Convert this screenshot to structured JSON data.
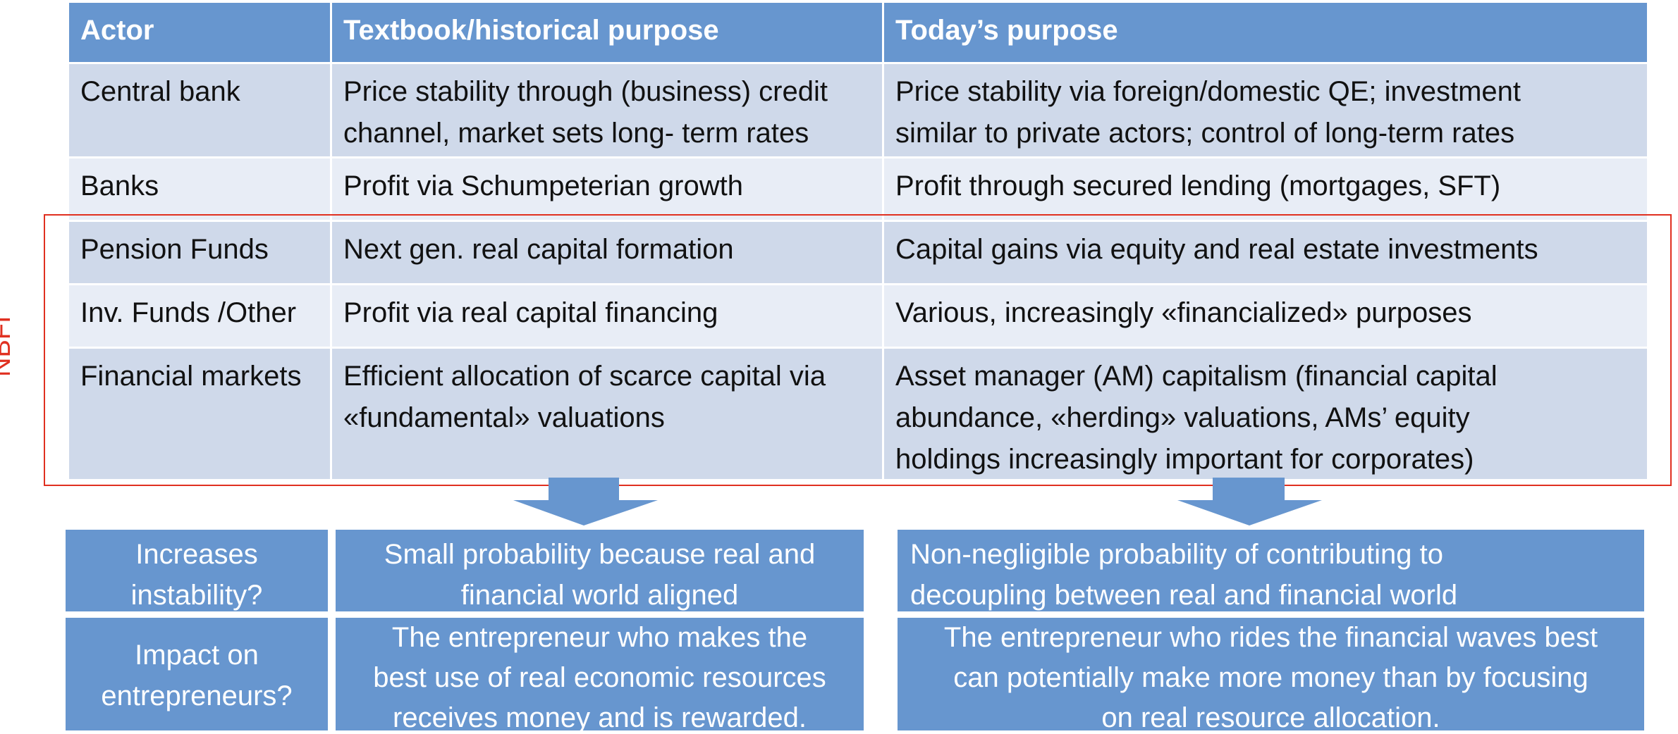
{
  "table": {
    "headers": [
      "Actor",
      "Textbook/historical purpose",
      "Today’s purpose"
    ],
    "rows": [
      {
        "actor": "Central bank",
        "historical": [
          "Price stability through (business) credit",
          "channel, market sets long- term rates"
        ],
        "today": [
          "Price stability via foreign/domestic QE; investment",
          "similar to private actors; control of long-term rates"
        ]
      },
      {
        "actor": "Banks",
        "historical": [
          "Profit via Schumpeterian growth"
        ],
        "today": [
          "Profit through secured lending (mortgages, SFT)"
        ]
      },
      {
        "actor": "Pension Funds",
        "historical": [
          "Next gen. real capital formation"
        ],
        "today": [
          "Capital gains via equity and real estate investments"
        ]
      },
      {
        "actor": "Inv. Funds /Other",
        "historical": [
          "Profit via real capital financing"
        ],
        "today": [
          "Various, increasingly «financialized» purposes"
        ]
      },
      {
        "actor": "Financial markets",
        "historical": [
          "Efficient allocation of scarce capital via",
          "«fundamental» valuations"
        ],
        "today": [
          "Asset manager (AM) capitalism (financial capital",
          "abundance, «herding» valuations, AMs’ equity",
          "holdings increasingly important for corporates)"
        ]
      }
    ]
  },
  "nbfi_label": "NBFI",
  "colors": {
    "header_blue": "#6796cf",
    "row_dark": "#cfd9ea",
    "row_light": "#e8edf6",
    "nbfi_red": "#e03020"
  },
  "bottom": {
    "q1": {
      "question": [
        "Increases",
        "instability?"
      ],
      "historical": [
        "Small probability because real and",
        "financial world aligned"
      ],
      "today": [
        "Non-negligible probability of contributing to",
        "decoupling between real and financial world"
      ]
    },
    "q2": {
      "question": [
        "Impact on",
        "entrepreneurs?"
      ],
      "historical": [
        "The entrepreneur who makes the",
        "best use of real economic resources",
        "receives money and is rewarded."
      ],
      "today": [
        "The entrepreneur who rides the financial waves best",
        "can potentially make more money than by focusing",
        "on real resource allocation."
      ]
    }
  }
}
